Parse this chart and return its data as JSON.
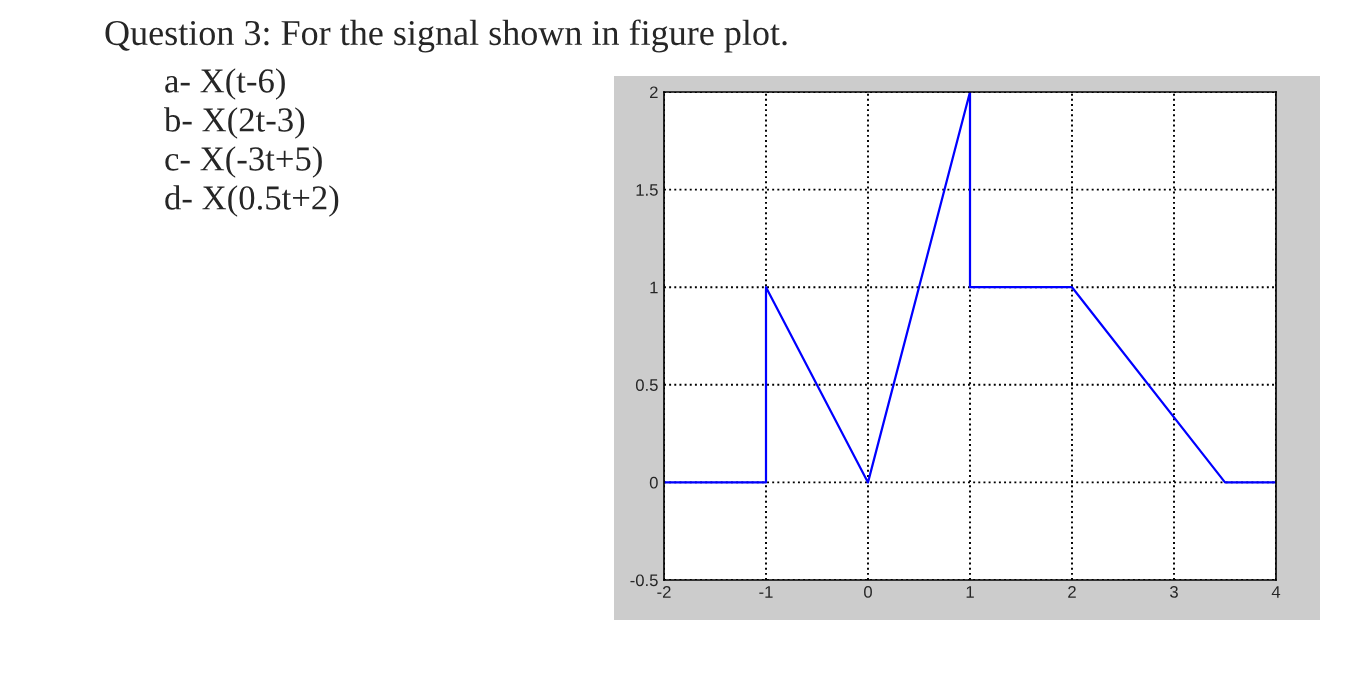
{
  "chart_data": {
    "type": "line",
    "title": "Question 3: For the signal shown in figure plot.",
    "annotations": [
      "a- X(t-6)",
      "b- X(2t-3)",
      "c- X(-3t+5)",
      "d- X(0.5t+2)"
    ],
    "series": [
      {
        "color": "#0000ff",
        "x": [
          -2,
          -1,
          -1,
          0,
          1,
          1,
          2,
          3.5,
          4
        ],
        "values": [
          0,
          0,
          1,
          0,
          2,
          1,
          1,
          0,
          0
        ]
      }
    ],
    "xlim": [
      -2,
      4
    ],
    "ylim": [
      -0.5,
      2
    ],
    "xticks": [
      -2,
      -1,
      0,
      1,
      2,
      3,
      4
    ],
    "yticks": [
      -0.5,
      0,
      0.5,
      1,
      1.5,
      2
    ],
    "grid": true,
    "line_style": "solid",
    "marker": "none"
  }
}
